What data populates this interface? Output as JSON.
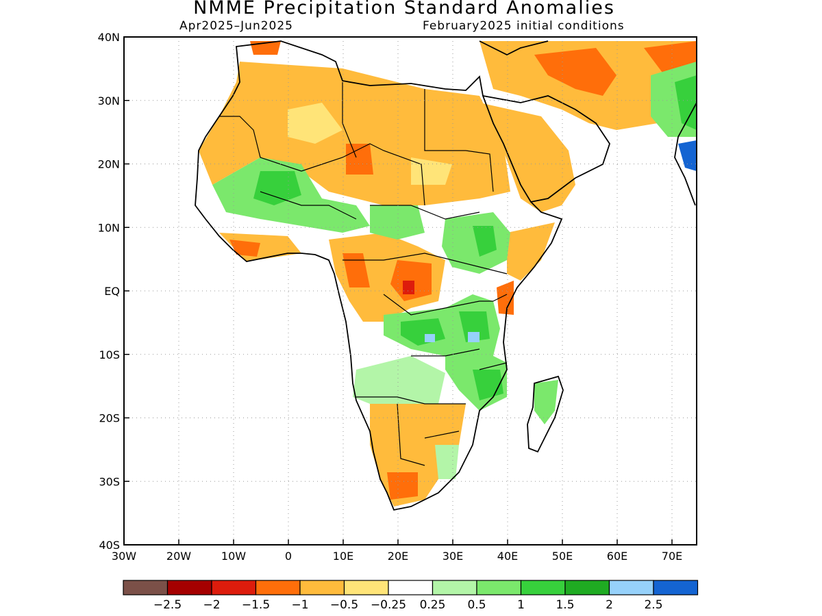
{
  "title": "NMME Precipitation Standard Anomalies",
  "period": "Apr2025–Jun2025",
  "initial_conditions": "February2025 initial conditions",
  "lat_labels": [
    "40N",
    "30N",
    "20N",
    "10N",
    "EQ",
    "10S",
    "20S",
    "30S",
    "40S"
  ],
  "lon_labels": [
    "30W",
    "20W",
    "10W",
    "0",
    "10E",
    "20E",
    "30E",
    "40E",
    "50E",
    "60E",
    "70E"
  ],
  "colorbar": {
    "colors": [
      "#7b5048",
      "#a50000",
      "#dd1c0c",
      "#ff6e0a",
      "#ffbb3c",
      "#ffe478",
      "#ffffff",
      "#b3f5a8",
      "#7be86c",
      "#37d03c",
      "#1fab22",
      "#96d1fa",
      "#1464d2"
    ],
    "labels": [
      "−2.5",
      "−2",
      "−1.5",
      "−1",
      "−0.5",
      "−0.25",
      "0.25",
      "0.5",
      "1",
      "1.5",
      "2",
      "2.5"
    ]
  }
}
